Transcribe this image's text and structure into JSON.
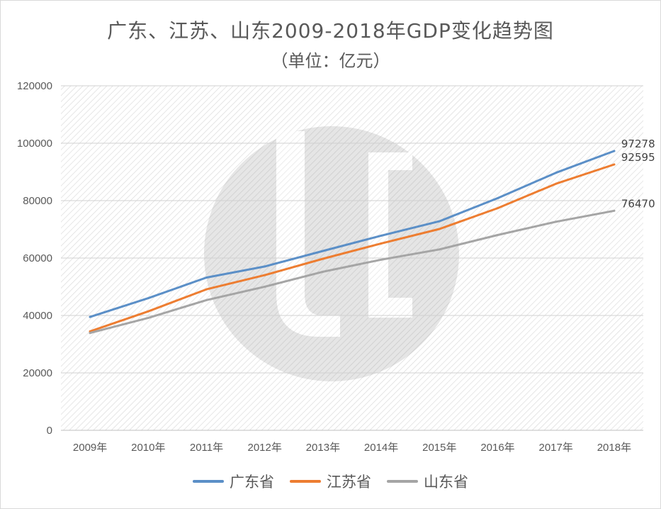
{
  "chart_data": {
    "type": "line",
    "title": "广东、江苏、山东2009-2018年GDP变化趋势图",
    "subtitle": "（单位：亿元）",
    "xlabel": "",
    "ylabel": "",
    "categories": [
      "2009年",
      "2010年",
      "2011年",
      "2012年",
      "2013年",
      "2014年",
      "2015年",
      "2016年",
      "2017年",
      "2018年"
    ],
    "ylim": [
      0,
      120000
    ],
    "yticks": [
      0,
      20000,
      40000,
      60000,
      80000,
      100000,
      120000
    ],
    "grid": true,
    "legend": "bottom",
    "series": [
      {
        "name": "广东省",
        "color": "#5b8fc7",
        "values": [
          39483,
          46013,
          53210,
          57068,
          62475,
          67810,
          72813,
          80855,
          89705,
          97278
        ]
      },
      {
        "name": "江苏省",
        "color": "#ed7d31",
        "values": [
          34457,
          41425,
          49110,
          54058,
          59753,
          65088,
          70116,
          77388,
          85870,
          92595
        ]
      },
      {
        "name": "山东省",
        "color": "#a5a5a5",
        "values": [
          33897,
          39170,
          45362,
          50013,
          55230,
          59427,
          63002,
          68024,
          72634,
          76470
        ]
      }
    ],
    "end_labels": [
      "97278",
      "92595",
      "76470"
    ]
  }
}
